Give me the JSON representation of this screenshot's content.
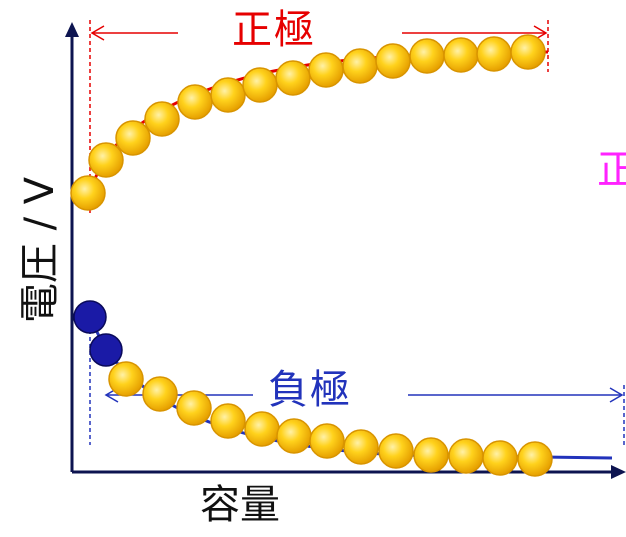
{
  "labels": {
    "y_axis": "電圧 / V",
    "x_axis": "容量",
    "positive": "正極",
    "negative": "負極",
    "cut_text": "正"
  },
  "colors": {
    "axis": "#0d1450",
    "positive": "#e60000",
    "negative": "#2233bb",
    "cut_text": "#ff22ff",
    "ball_fill": "#f5b800",
    "ball_highlight": "#ffe066",
    "ball_edge": "#d89400",
    "dark_ball": "#1a1aa6"
  },
  "counts": {
    "positive_balls": 15,
    "negative_balls": 14,
    "dark_balls": 2
  }
}
